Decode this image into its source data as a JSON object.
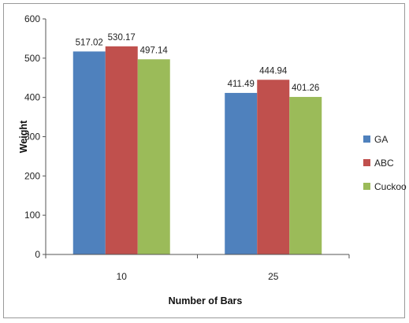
{
  "chart_data": {
    "type": "bar",
    "title": "",
    "xlabel": "Number of Bars",
    "ylabel": "Weight",
    "categories": [
      "10",
      "25"
    ],
    "ylim": [
      0,
      600
    ],
    "yticks": [
      0,
      100,
      200,
      300,
      400,
      500,
      600
    ],
    "grid": false,
    "legend_position": "right",
    "series": [
      {
        "name": "GA",
        "color": "#4F81BD",
        "values": [
          517.02,
          411.49
        ],
        "labels": [
          "517.02",
          "411.49"
        ]
      },
      {
        "name": "ABC",
        "color": "#C0504D",
        "values": [
          530.17,
          444.94
        ],
        "labels": [
          "530.17",
          "444.94"
        ]
      },
      {
        "name": "Cuckoo",
        "color": "#9BBB59",
        "values": [
          497.14,
          401.26
        ],
        "labels": [
          "497.14",
          "401.26"
        ]
      }
    ]
  }
}
